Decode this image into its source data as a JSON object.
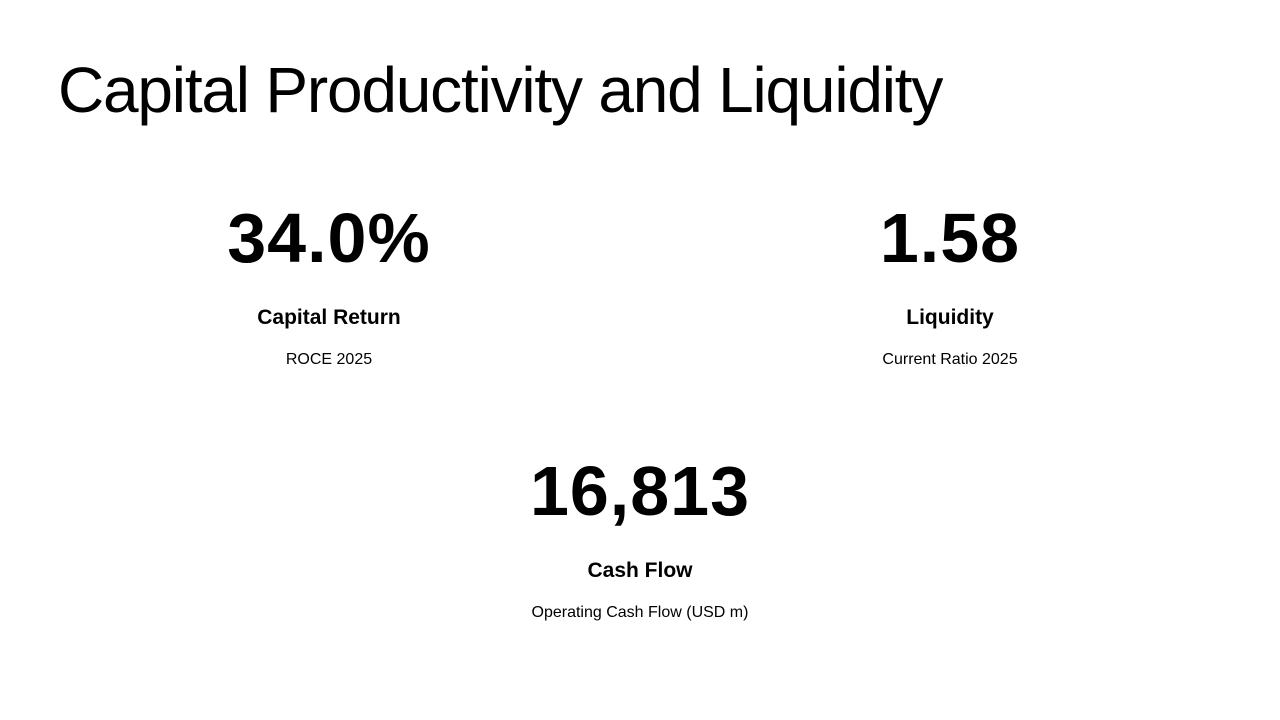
{
  "slide": {
    "title": "Capital Productivity and Liquidity",
    "stats": [
      {
        "value": "34.0%",
        "label": "Capital Return",
        "sub": "ROCE 2025"
      },
      {
        "value": "1.58",
        "label": "Liquidity",
        "sub": "Current Ratio 2025"
      },
      {
        "value": "16,813",
        "label": "Cash Flow",
        "sub": "Operating Cash Flow (USD m)"
      }
    ]
  },
  "colors": {
    "background": "#ffffff",
    "text": "#000000"
  }
}
